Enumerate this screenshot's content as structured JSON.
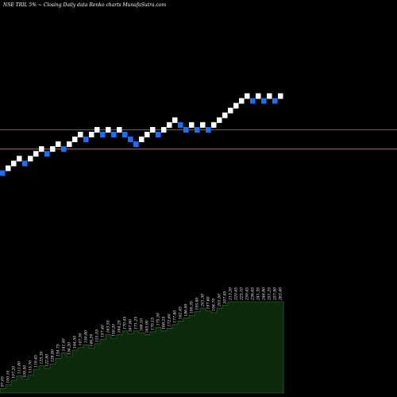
{
  "header": {
    "title": "NSE TRIL  5% ~  Closing Daily data  Renko  charts MunafaSutra.com"
  },
  "colors": {
    "background": "#000000",
    "up_brick": "#ffffff",
    "down_brick": "#1e6ef0",
    "line_upper": "#b24a2a",
    "line_lower": "#c86a40",
    "volume_fill": "#0b2a0b",
    "volume_stroke": "#2f7d2f"
  },
  "chart_data": {
    "type": "renko",
    "brick_size_percent": 5,
    "bricks": [
      {
        "dir": "down",
        "level": 100.0
      },
      {
        "dir": "up",
        "level": 103.6
      },
      {
        "dir": "up",
        "level": 107.2
      },
      {
        "dir": "up",
        "level": 110.8
      },
      {
        "dir": "down",
        "level": 107.2
      },
      {
        "dir": "up",
        "level": 110.8
      },
      {
        "dir": "up",
        "level": 114.4
      },
      {
        "dir": "up",
        "level": 118.0
      },
      {
        "dir": "down",
        "level": 114.4
      },
      {
        "dir": "up",
        "level": 118.0
      },
      {
        "dir": "up",
        "level": 121.6
      },
      {
        "dir": "down",
        "level": 118.0
      },
      {
        "dir": "up",
        "level": 121.6
      },
      {
        "dir": "up",
        "level": 125.2
      },
      {
        "dir": "up",
        "level": 128.8
      },
      {
        "dir": "down",
        "level": 125.2
      },
      {
        "dir": "up",
        "level": 128.8
      },
      {
        "dir": "up",
        "level": 132.4
      },
      {
        "dir": "down",
        "level": 128.8
      },
      {
        "dir": "up",
        "level": 132.4
      },
      {
        "dir": "down",
        "level": 128.8
      },
      {
        "dir": "up",
        "level": 132.4
      },
      {
        "dir": "down",
        "level": 128.8
      },
      {
        "dir": "down",
        "level": 125.2
      },
      {
        "dir": "down",
        "level": 121.6
      },
      {
        "dir": "up",
        "level": 125.2
      },
      {
        "dir": "up",
        "level": 128.8
      },
      {
        "dir": "up",
        "level": 132.4
      },
      {
        "dir": "down",
        "level": 128.8
      },
      {
        "dir": "up",
        "level": 132.4
      },
      {
        "dir": "up",
        "level": 136.0
      },
      {
        "dir": "up",
        "level": 139.6
      },
      {
        "dir": "down",
        "level": 136.0
      },
      {
        "dir": "down",
        "level": 132.4
      },
      {
        "dir": "up",
        "level": 136.0
      },
      {
        "dir": "down",
        "level": 132.4
      },
      {
        "dir": "up",
        "level": 136.0
      },
      {
        "dir": "down",
        "level": 132.4
      },
      {
        "dir": "up",
        "level": 136.0
      },
      {
        "dir": "up",
        "level": 139.6
      },
      {
        "dir": "up",
        "level": 143.2
      },
      {
        "dir": "up",
        "level": 146.8
      },
      {
        "dir": "up",
        "level": 150.4
      },
      {
        "dir": "up",
        "level": 154.0
      },
      {
        "dir": "up",
        "level": 157.6
      },
      {
        "dir": "down",
        "level": 154.0
      },
      {
        "dir": "up",
        "level": 157.6
      },
      {
        "dir": "down",
        "level": 154.0
      },
      {
        "dir": "up",
        "level": 157.6
      },
      {
        "dir": "down",
        "level": 154.0
      },
      {
        "dir": "up",
        "level": 157.6
      }
    ],
    "reference_lines": [
      {
        "name": "upper",
        "level": 132.4
      },
      {
        "name": "lower",
        "level": 118.0
      }
    ],
    "volume_labels": [
      "97.05",
      "100.10",
      "107.20",
      "111.80",
      "109.50",
      "115.70",
      "119.45",
      "125.30",
      "122.80",
      "128.80",
      "134.75",
      "141.40",
      "136.20",
      "144.50",
      "147.30",
      "150.80",
      "146.20",
      "151.05",
      "157.40",
      "163.55",
      "159.20",
      "164.25",
      "170.45",
      "167.80",
      "171.25",
      "168.10",
      "165.90",
      "170.15",
      "175.30",
      "168.25",
      "172.60",
      "177.80",
      "182.45",
      "186.90",
      "190.35",
      "195.80",
      "201.30",
      "197.60",
      "194.70",
      "201.50",
      "207.85",
      "213.20",
      "220.45",
      "225.10",
      "230.45",
      "236.65",
      "241.35",
      "246.80",
      "251.25",
      "257.90",
      "263.40"
    ],
    "volume_values": [
      5,
      9,
      14,
      19,
      15,
      20,
      26,
      30,
      27,
      32,
      38,
      44,
      40,
      47,
      50,
      53,
      49,
      54,
      59,
      64,
      60,
      64,
      68,
      65,
      68,
      66,
      64,
      67,
      72,
      68,
      71,
      75,
      79,
      82,
      85,
      89,
      93,
      90,
      88,
      93,
      96,
      100,
      100,
      100,
      100,
      100,
      100,
      100,
      100,
      100,
      100
    ]
  }
}
